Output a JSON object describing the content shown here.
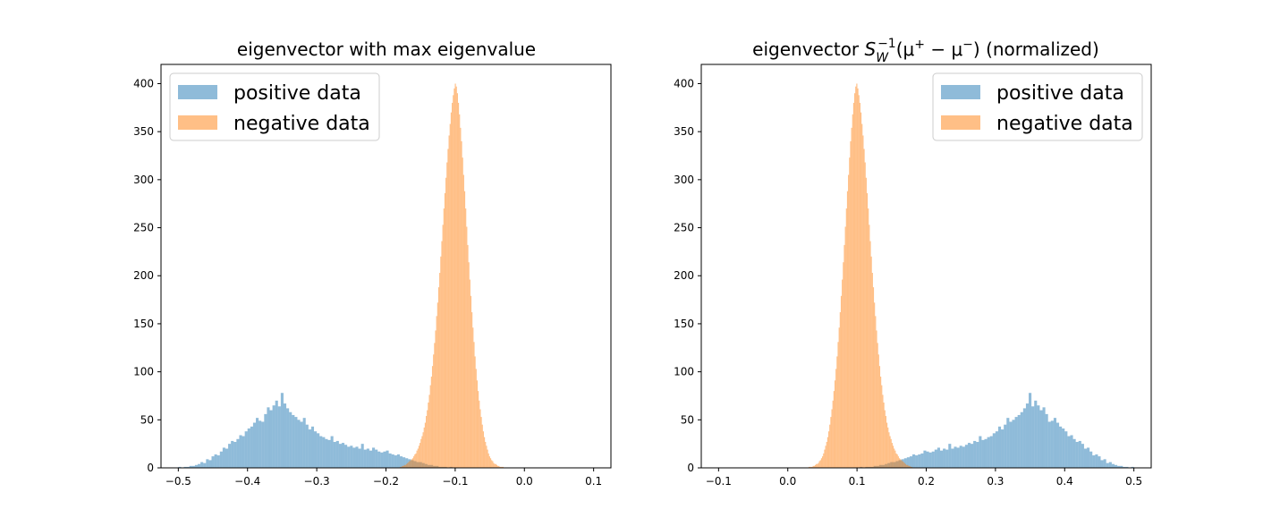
{
  "chart_data": [
    {
      "type": "bar",
      "title": "eigenvector with max eigenvalue",
      "xlabel": "",
      "ylabel": "",
      "xlim": [
        -0.525,
        0.125
      ],
      "ylim": [
        0,
        420
      ],
      "xticks": [
        -0.5,
        -0.4,
        -0.3,
        -0.2,
        -0.1,
        0.0,
        0.1
      ],
      "xtick_labels": [
        "−0.5",
        "−0.4",
        "−0.3",
        "−0.2",
        "−0.1",
        "0.0",
        "0.1"
      ],
      "yticks": [
        0,
        50,
        100,
        150,
        200,
        250,
        300,
        350,
        400
      ],
      "ytick_labels": [
        "0",
        "50",
        "100",
        "150",
        "200",
        "250",
        "300",
        "350",
        "400"
      ],
      "legend_position": "top-left",
      "series": [
        {
          "name": "positive data",
          "color": "#1f77b4",
          "alpha": 0.5,
          "x_start": -0.5,
          "bin_width": 0.004,
          "values": [
            1,
            0,
            1,
            1,
            2,
            2,
            3,
            4,
            6,
            5,
            9,
            8,
            12,
            14,
            13,
            17,
            21,
            20,
            25,
            28,
            27,
            30,
            34,
            33,
            38,
            41,
            43,
            47,
            52,
            49,
            48,
            56,
            63,
            60,
            65,
            70,
            64,
            78,
            67,
            62,
            58,
            55,
            53,
            50,
            48,
            52,
            45,
            40,
            43,
            38,
            36,
            33,
            32,
            30,
            29,
            33,
            27,
            28,
            25,
            26,
            24,
            22,
            23,
            21,
            22,
            20,
            25,
            19,
            20,
            18,
            21,
            19,
            17,
            16,
            17,
            18,
            15,
            14,
            13,
            14,
            12,
            11,
            10,
            9,
            8,
            7,
            6,
            6,
            5,
            4,
            3,
            3,
            2,
            2,
            1,
            1,
            1,
            0,
            1,
            0
          ]
        },
        {
          "name": "negative data",
          "color": "#ff7f0e",
          "alpha": 0.5,
          "x_start": -0.18,
          "bin_width": 0.0015,
          "values": [
            1,
            1,
            2,
            2,
            3,
            3,
            4,
            5,
            6,
            7,
            8,
            9,
            10,
            12,
            14,
            15,
            18,
            20,
            23,
            26,
            30,
            33,
            37,
            42,
            47,
            54,
            60,
            68,
            76,
            86,
            95,
            106,
            118,
            130,
            143,
            158,
            172,
            188,
            203,
            220,
            236,
            253,
            270,
            286,
            302,
            318,
            332,
            346,
            358,
            370,
            380,
            388,
            395,
            400,
            397,
            390,
            380,
            368,
            354,
            340,
            323,
            305,
            288,
            270,
            251,
            232,
            214,
            196,
            179,
            162,
            146,
            131,
            116,
            103,
            91,
            80,
            70,
            61,
            53,
            45,
            38,
            32,
            27,
            23,
            19,
            15,
            12,
            10,
            8,
            7,
            5,
            4,
            4,
            3,
            2,
            2,
            1,
            1,
            1,
            1
          ]
        }
      ]
    },
    {
      "type": "bar",
      "title": "eigenvector S_W^{-1}(μ⁺ − μ⁻) (normalized)",
      "title_parts": [
        "eigenvector ",
        "S",
        "W",
        "−1",
        "(μ",
        "+",
        " − μ",
        "−",
        ") (normalized)"
      ],
      "xlabel": "",
      "ylabel": "",
      "xlim": [
        -0.125,
        0.525
      ],
      "ylim": [
        0,
        420
      ],
      "xticks": [
        -0.1,
        0.0,
        0.1,
        0.2,
        0.3,
        0.4,
        0.5
      ],
      "xtick_labels": [
        "−0.1",
        "0.0",
        "0.1",
        "0.2",
        "0.3",
        "0.4",
        "0.5"
      ],
      "yticks": [
        0,
        50,
        100,
        150,
        200,
        250,
        300,
        350,
        400
      ],
      "ytick_labels": [
        "0",
        "50",
        "100",
        "150",
        "200",
        "250",
        "300",
        "350",
        "400"
      ],
      "legend_position": "top-right",
      "series": [
        {
          "name": "positive data",
          "color": "#1f77b4",
          "alpha": 0.5,
          "mirror_of": 0
        },
        {
          "name": "negative data",
          "color": "#ff7f0e",
          "alpha": 0.5,
          "mirror_of": 1
        }
      ]
    }
  ]
}
